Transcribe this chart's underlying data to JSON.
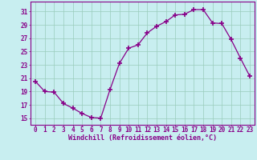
{
  "x": [
    0,
    1,
    2,
    3,
    4,
    5,
    6,
    7,
    8,
    9,
    10,
    11,
    12,
    13,
    14,
    15,
    16,
    17,
    18,
    19,
    20,
    21,
    22,
    23
  ],
  "y": [
    20.5,
    19.0,
    18.9,
    17.2,
    16.5,
    15.7,
    15.1,
    15.0,
    19.3,
    23.2,
    25.5,
    26.0,
    27.8,
    28.8,
    29.5,
    30.5,
    30.6,
    31.3,
    31.3,
    29.3,
    29.2,
    26.8,
    24.0,
    21.3
  ],
  "xlim": [
    -0.5,
    23.5
  ],
  "ylim": [
    14,
    32.5
  ],
  "yticks": [
    15,
    17,
    19,
    21,
    23,
    25,
    27,
    29,
    31
  ],
  "xticks": [
    0,
    1,
    2,
    3,
    4,
    5,
    6,
    7,
    8,
    9,
    10,
    11,
    12,
    13,
    14,
    15,
    16,
    17,
    18,
    19,
    20,
    21,
    22,
    23
  ],
  "xlabel": "Windchill (Refroidissement éolien,°C)",
  "line_color": "#880088",
  "marker": "+",
  "bg_color": "#c8eef0",
  "grid_color": "#99ccbb",
  "tick_color": "#880088",
  "label_color": "#880088",
  "spine_color": "#880088",
  "tick_fontsize": 5.5,
  "label_fontsize": 6.0,
  "linewidth": 0.9,
  "markersize": 4,
  "markeredgewidth": 1.2
}
